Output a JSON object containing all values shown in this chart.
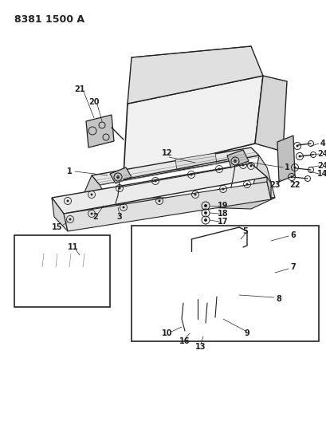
{
  "title": "8381 1500 A",
  "bg_color": "#ffffff",
  "lc": "#222222",
  "label_fs": 7,
  "title_fs": 9
}
